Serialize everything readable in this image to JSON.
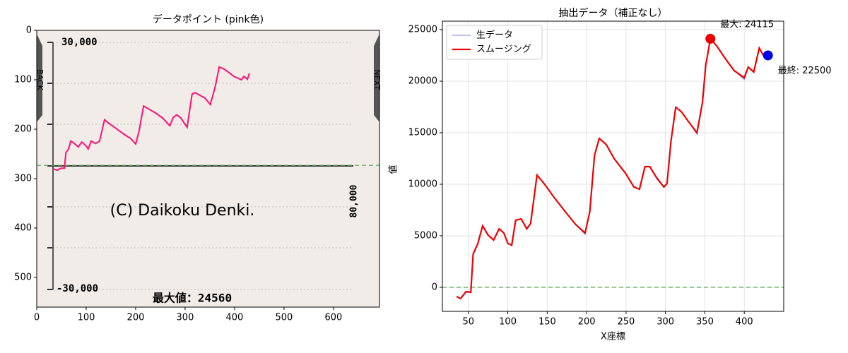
{
  "chart_data": [
    {
      "type": "image",
      "title": "データポイント (pink色)",
      "xlim": [
        0,
        693
      ],
      "ylim": [
        560,
        0
      ],
      "xticks": [
        0,
        100,
        200,
        300,
        400,
        500,
        600
      ],
      "yticks": [
        0,
        100,
        200,
        300,
        400,
        500
      ],
      "hline": 273,
      "color": "#ff1070",
      "x": [
        33,
        41,
        49,
        56,
        59,
        64,
        69,
        76,
        84,
        91,
        100,
        104,
        110,
        119,
        127,
        137,
        147,
        161,
        176,
        190,
        200,
        207,
        216,
        226,
        240,
        254,
        269,
        276,
        283,
        291,
        304,
        314,
        320,
        340,
        351,
        361,
        369,
        380,
        400,
        414,
        419,
        426,
        430
      ],
      "values": [
        280,
        283,
        279,
        279,
        247,
        241,
        224,
        229,
        236,
        226,
        234,
        240,
        224,
        229,
        224,
        181,
        189,
        199,
        210,
        219,
        230,
        203,
        153,
        159,
        167,
        177,
        193,
        176,
        171,
        177,
        196,
        129,
        126,
        137,
        150,
        114,
        74,
        79,
        94,
        100,
        93,
        99,
        87
      ],
      "image_text": {
        "top_label": "30,000",
        "bottom_label": "-30,000",
        "right_label": "80,000",
        "watermark": "(C) Daikoku Denki.",
        "max_label": "最大値：24560",
        "back": "BACK",
        "next": "NEXT"
      }
    },
    {
      "type": "line",
      "title": "抽出データ（補正なし）",
      "xlabel": "X座標",
      "ylabel": "値",
      "x": [
        35,
        40,
        47,
        53,
        56,
        62,
        68,
        75,
        82,
        89,
        95,
        100,
        105,
        110,
        117,
        124,
        129,
        137,
        146,
        159,
        173,
        186,
        198,
        204,
        210,
        216,
        225,
        235,
        249,
        260,
        267,
        274,
        280,
        289,
        298,
        302,
        307,
        313,
        320,
        329,
        340,
        347,
        351,
        357,
        365,
        374,
        387,
        400,
        405,
        412,
        419,
        424,
        430
      ],
      "series": [
        {
          "name": "生データ",
          "color": "#9999ee",
          "values": [
            -890,
            -1100,
            -500,
            -480,
            3220,
            4250,
            6050,
            5070,
            4590,
            5680,
            5270,
            4250,
            4000,
            6510,
            6640,
            5600,
            6200,
            10890,
            10070,
            8700,
            7330,
            6100,
            5150,
            7330,
            12810,
            14450,
            13840,
            12470,
            11100,
            9730,
            9520,
            11710,
            11710,
            10500,
            9730,
            10070,
            14180,
            17470,
            17050,
            16100,
            14850,
            17950,
            21510,
            24115,
            23420,
            22400,
            21030,
            20150,
            21370,
            20890,
            23220,
            22530,
            22500
          ]
        },
        {
          "name": "スムージング",
          "color": "#ee0000",
          "values": [
            -890,
            -1100,
            -410,
            -480,
            3220,
            4250,
            5960,
            5070,
            4590,
            5680,
            5270,
            4250,
            4110,
            6510,
            6640,
            5680,
            6200,
            10890,
            10070,
            8700,
            7330,
            6100,
            5270,
            7330,
            12810,
            14450,
            13840,
            12470,
            11100,
            9730,
            9520,
            11710,
            11710,
            10620,
            9730,
            10070,
            14180,
            17470,
            17050,
            16100,
            15000,
            17950,
            21510,
            24115,
            23420,
            22400,
            21030,
            20340,
            21370,
            20890,
            23220,
            22530,
            22500
          ]
        }
      ],
      "xlim": [
        17,
        450
      ],
      "ylim": [
        -2330,
        25820
      ],
      "xticks": [
        50,
        100,
        150,
        200,
        250,
        300,
        350,
        400
      ],
      "yticks": [
        0,
        5000,
        10000,
        15000,
        20000,
        25000
      ],
      "grid": true,
      "legend": "upper left",
      "hline": 0,
      "annotations": [
        {
          "text": "最大: 24115",
          "x": 357,
          "y": 24115,
          "color": "#ee0000"
        },
        {
          "text": "最終: 22500",
          "x": 430,
          "y": 22500,
          "color": "#0000ee"
        }
      ]
    }
  ]
}
